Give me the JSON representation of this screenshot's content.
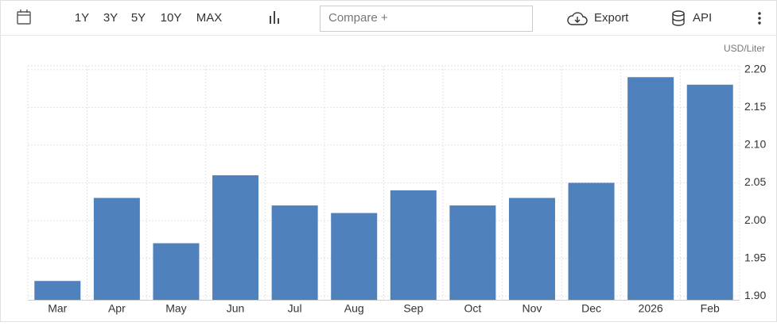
{
  "toolbar": {
    "ranges": [
      "1Y",
      "3Y",
      "5Y",
      "10Y",
      "MAX"
    ],
    "compare": "Compare +",
    "export": "Export",
    "api": "API"
  },
  "chart_data": {
    "type": "bar",
    "ylabel": "USD/Liter",
    "categories": [
      "Mar",
      "Apr",
      "May",
      "Jun",
      "Jul",
      "Aug",
      "Sep",
      "Oct",
      "Nov",
      "Dec",
      "2026",
      "Feb"
    ],
    "values": [
      1.92,
      2.03,
      1.97,
      2.06,
      2.02,
      2.01,
      2.04,
      2.02,
      2.03,
      2.05,
      2.19,
      2.18
    ],
    "color": "#4f81bd",
    "ylim": [
      1.895,
      2.205
    ],
    "yticks": [
      {
        "value": 1.9,
        "label": "1.90"
      },
      {
        "value": 1.95,
        "label": "1.95"
      },
      {
        "value": 2.0,
        "label": "2.00"
      },
      {
        "value": 2.05,
        "label": "2.05"
      },
      {
        "value": 2.1,
        "label": "2.10"
      },
      {
        "value": 2.15,
        "label": "2.15"
      },
      {
        "value": 2.2,
        "label": "2.20"
      }
    ],
    "grid": true
  }
}
